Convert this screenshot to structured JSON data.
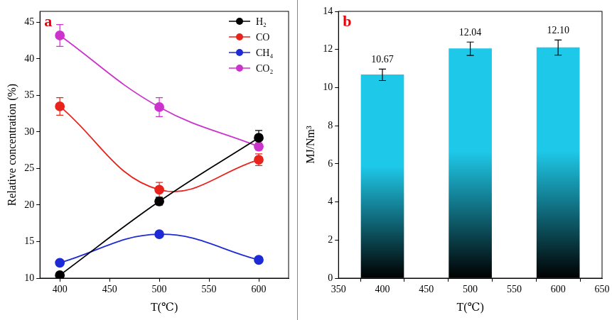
{
  "chart_data": [
    {
      "type": "line",
      "title": "a",
      "x": [
        400,
        500,
        600
      ],
      "series": [
        {
          "name": "H₂",
          "color": "#000000",
          "values": [
            10.4,
            20.5,
            29.2
          ],
          "errors": [
            0.3,
            0.5,
            1.0
          ]
        },
        {
          "name": "CO",
          "color": "#e8231c",
          "values": [
            33.5,
            22.1,
            26.2
          ],
          "errors": [
            1.2,
            1.0,
            0.8
          ]
        },
        {
          "name": "CH₄",
          "color": "#1c2bd6",
          "values": [
            12.1,
            16.0,
            12.5
          ],
          "errors": [
            0.3,
            0.4,
            0.3
          ]
        },
        {
          "name": "CO₂",
          "color": "#cc33cc",
          "values": [
            43.2,
            33.4,
            28.0
          ],
          "errors": [
            1.5,
            1.3,
            0.5
          ]
        }
      ],
      "xlabel": "T(℃)",
      "ylabel": "Relative concentration (%)",
      "xlim": [
        380,
        630
      ],
      "xticks": [
        400,
        450,
        500,
        550,
        600
      ],
      "ylim": [
        10,
        46.5
      ],
      "yticks": [
        10,
        15,
        20,
        25,
        30,
        35,
        40,
        45
      ],
      "marker": "circle",
      "legend": "upper right",
      "grid": false
    },
    {
      "type": "bar",
      "title": "b",
      "x": [
        400,
        500,
        600
      ],
      "values": [
        10.67,
        12.04,
        12.1
      ],
      "value_labels": [
        "10.67",
        "12.04",
        "12.10"
      ],
      "errors": [
        0.3,
        0.35,
        0.4
      ],
      "color": "#1ec8e8",
      "xlabel": "T(℃)",
      "ylabel": "MJ/Nm³",
      "xlim": [
        350,
        650
      ],
      "xticks": [
        350,
        400,
        450,
        500,
        550,
        600,
        650
      ],
      "ylim": [
        0,
        14
      ],
      "yticks": [
        0,
        2,
        4,
        6,
        8,
        10,
        12,
        14
      ],
      "data_labels": true,
      "grid": false
    }
  ]
}
